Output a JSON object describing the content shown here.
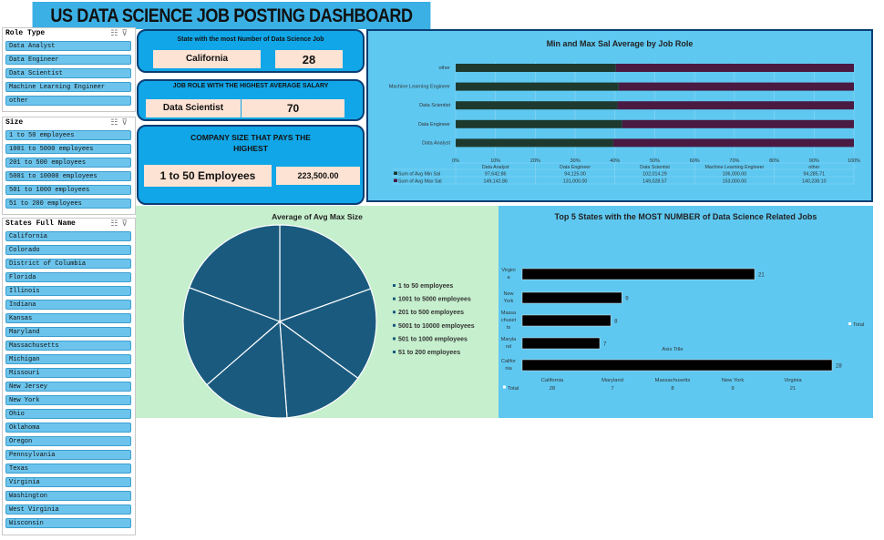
{
  "title": "US DATA SCIENCE JOB POSTING DASHBOARD",
  "slicers": [
    {
      "title": "Role Type",
      "items": [
        "Data Analyst",
        "Data Engineer",
        "Data Scientist",
        "Machine Learning Engineer",
        "other"
      ]
    },
    {
      "title": "Size",
      "items": [
        "1 to 50 employees",
        "1001 to 5000 employees",
        "201 to 500 employees",
        "5001 to 10000 employees",
        "501 to 1000 employees",
        "51 to 200 employees"
      ]
    },
    {
      "title": "States Full Name",
      "items": [
        "California",
        "Colorado",
        "District of Columbia",
        "Florida",
        "Illinois",
        "Indiana",
        "Kansas",
        "Maryland",
        "Massachusetts",
        "Michigan",
        "Missouri",
        "New Jersey",
        "New York",
        "Ohio",
        "Oklahoma",
        "Oregon",
        "Pennsylvania",
        "Texas",
        "Virginia",
        "Washington",
        "West Virginia",
        "Wisconsin"
      ]
    }
  ],
  "kpis": {
    "state": {
      "label": "State with the most Number of Data Science Job",
      "name": "California",
      "value": "28"
    },
    "role": {
      "label": "JOB ROLE WITH THE HIGHEST AVERAGE SALARY",
      "name": "Data Scientist",
      "value": "70"
    },
    "company": {
      "label": "COMPANY SIZE THAT PAYS THE HIGHEST",
      "name": "1 to 50 Employees",
      "value": "223,500.00"
    }
  },
  "icons": [
    "multi-select-icon",
    "clear-filter-icon"
  ],
  "colors": {
    "accent": "#11a6e7",
    "panel_blue": "#5ec8f1",
    "panel_green": "#c6efcd",
    "pie": "#1a5a7f",
    "bar_min": "#1e3a2f",
    "bar_max": "#4a1a42"
  },
  "chart_data": [
    {
      "type": "bar",
      "orientation": "horizontal",
      "stacked": "100%",
      "title": "Min and Max Sal Average by Job Role",
      "categories": [
        "Data Analyst",
        "Data Engineer",
        "Data Scientist",
        "Machine Learning Engineer",
        "other"
      ],
      "x_ticks": [
        "0%",
        "10%",
        "20%",
        "30%",
        "40%",
        "50%",
        "60%",
        "70%",
        "80%",
        "90%",
        "100%"
      ],
      "series": [
        {
          "name": "Sum of Avg Min Sal",
          "values": [
            97642.86,
            94125.0,
            102014.29,
            106000.0,
            94285.71
          ],
          "labels": [
            "97,642.86",
            "94,125.00",
            "102,014.29",
            "106,000.00",
            "94,285.71"
          ]
        },
        {
          "name": "Sum of Avg Max Sal",
          "values": [
            149142.86,
            131000.0,
            149028.57,
            153000.0,
            140238.1
          ],
          "labels": [
            "149,142.86",
            "131,000.00",
            "149,028.57",
            "153,000.00",
            "140,238.10"
          ]
        }
      ]
    },
    {
      "type": "pie",
      "title": "Average of Avg Max Size",
      "labels": [
        "1 to 50 employees",
        "1001 to 5000 employees",
        "201 to 500 employees",
        "5001 to 10000 employees",
        "501 to 1000 employees",
        "51 to 200 employees"
      ],
      "values": [
        19.5,
        15.5,
        13.8,
        14.8,
        17.1,
        19.3
      ]
    },
    {
      "type": "bar",
      "orientation": "horizontal",
      "title": "Top 5 States with the MOST NUMBER of Data Science Related Jobs",
      "categories": [
        "Virginia",
        "New York",
        "Massachusetts",
        "Maryland",
        "California"
      ],
      "category_labels": [
        [
          "Virgini",
          "a"
        ],
        [
          "New",
          "York"
        ],
        [
          "Massa",
          "chuset",
          "ts"
        ],
        [
          "Maryla",
          "nd"
        ],
        [
          "Califor",
          "nia"
        ]
      ],
      "series": [
        {
          "name": "Total",
          "values": [
            21,
            9,
            8,
            7,
            28
          ]
        }
      ],
      "xlabel": "Axis Title",
      "table": {
        "categories": [
          "California",
          "Maryland",
          "Massachusetts",
          "New York",
          "Virginia"
        ],
        "values": [
          "28",
          "7",
          "8",
          "9",
          "21"
        ]
      }
    }
  ]
}
